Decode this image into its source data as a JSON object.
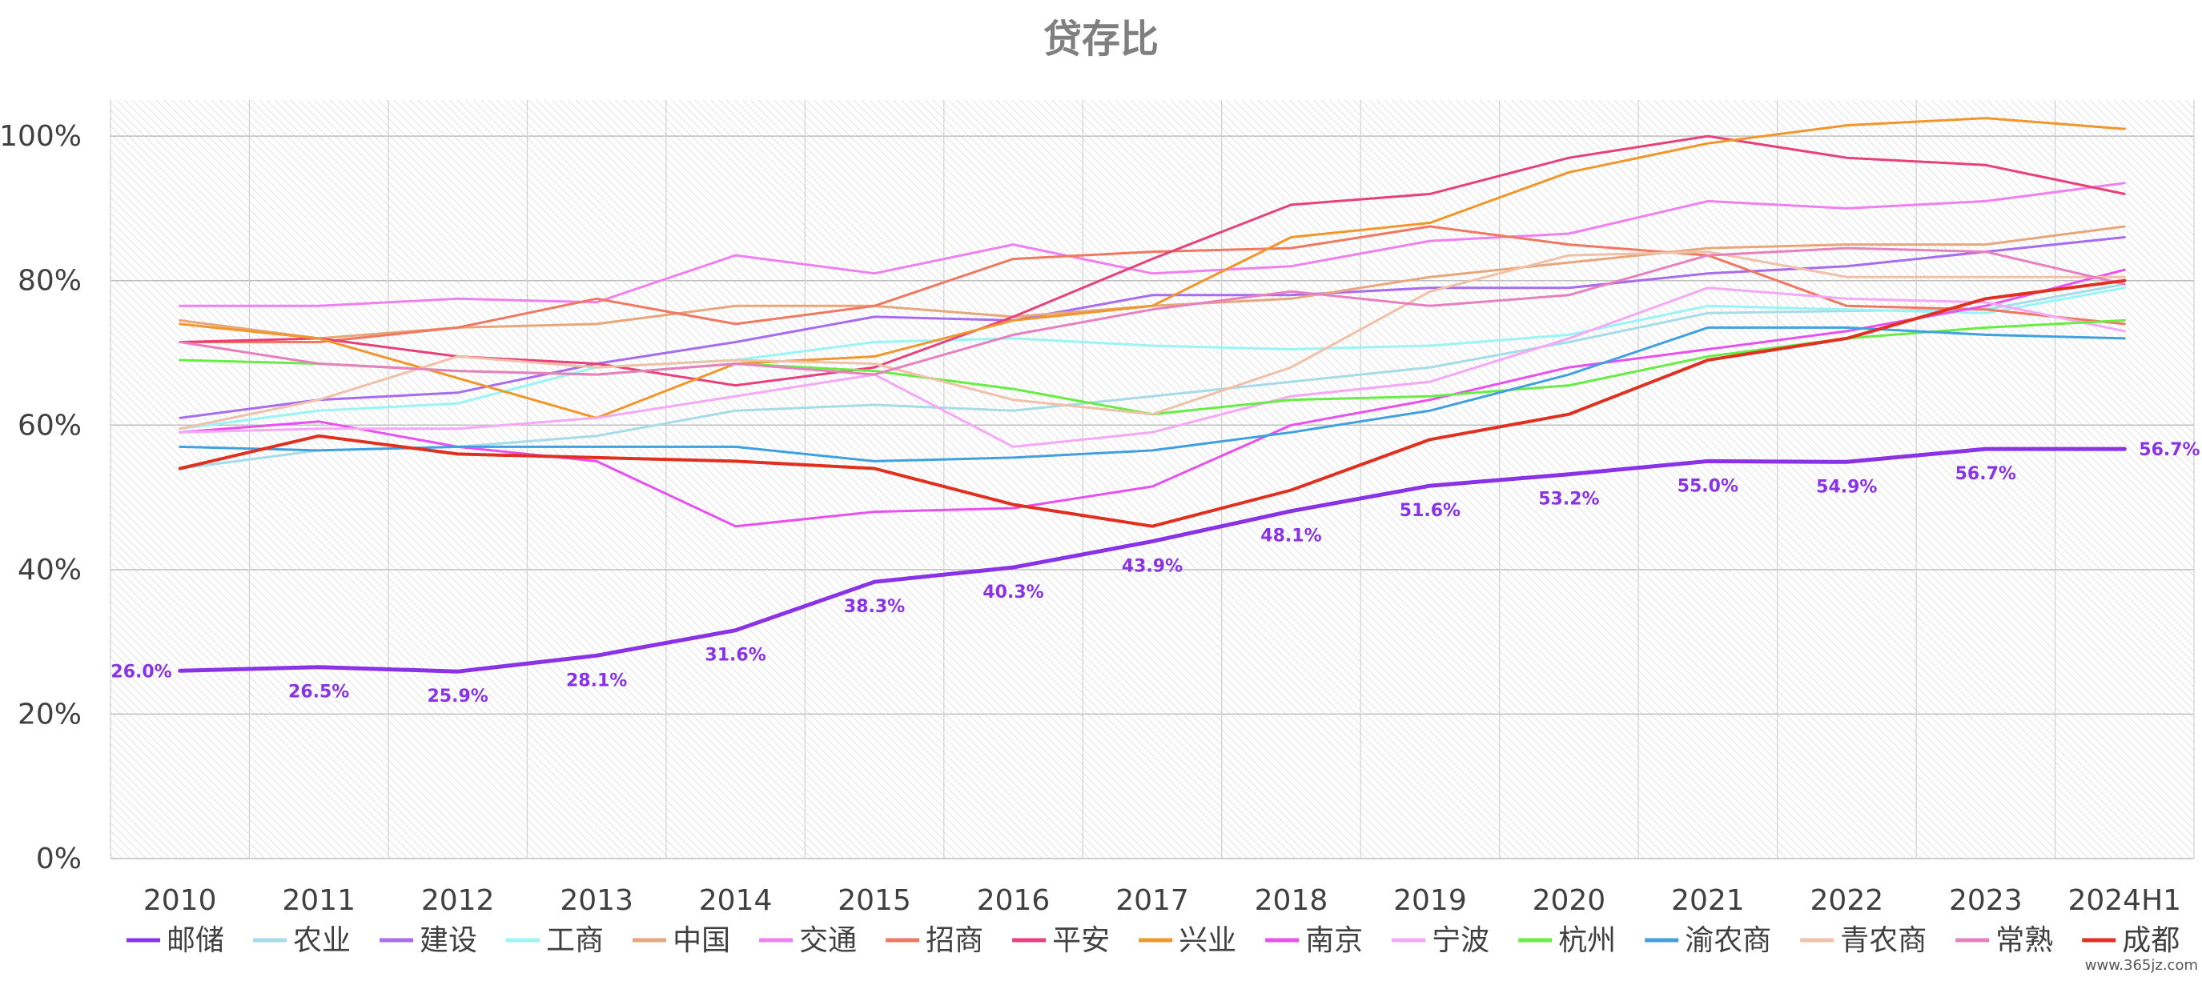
{
  "chart_data": {
    "type": "line",
    "title": "贷存比",
    "xlabel": "",
    "ylabel": "",
    "categories": [
      "2010",
      "2011",
      "2012",
      "2013",
      "2014",
      "2015",
      "2016",
      "2017",
      "2018",
      "2019",
      "2020",
      "2021",
      "2022",
      "2023",
      "2024H1"
    ],
    "ylim": [
      0,
      100
    ],
    "yticks": [
      "0%",
      "20%",
      "40%",
      "60%",
      "80%",
      "100%"
    ],
    "grid": true,
    "legend_position": "bottom",
    "series": [
      {
        "name": "邮储",
        "color": "#8a33e6",
        "width": 5,
        "labeled": true,
        "values": [
          26.0,
          26.5,
          25.9,
          28.1,
          31.6,
          38.3,
          40.3,
          43.9,
          48.1,
          51.6,
          53.2,
          55.0,
          54.9,
          56.7,
          56.7
        ],
        "labels": [
          "26.0%",
          "26.5%",
          "25.9%",
          "28.1%",
          "31.6%",
          "38.3%",
          "40.3%",
          "43.9%",
          "48.1%",
          "51.6%",
          "53.2%",
          "55.0%",
          "54.9%",
          "56.7%",
          "56.7%"
        ]
      },
      {
        "name": "农业",
        "color": "#a5dce8",
        "width": 3,
        "values": [
          54.0,
          56.5,
          57.0,
          58.5,
          62.0,
          62.8,
          62.0,
          64.0,
          66.0,
          68.0,
          71.5,
          75.5,
          75.8,
          76.0,
          79.5
        ]
      },
      {
        "name": "建设",
        "color": "#a86cf0",
        "width": 3,
        "values": [
          61.0,
          63.5,
          64.5,
          68.5,
          71.5,
          75.0,
          74.5,
          78.0,
          78.0,
          79.0,
          79.0,
          81.0,
          82.0,
          84.0,
          86.0
        ]
      },
      {
        "name": "工商",
        "color": "#99f5f5",
        "width": 3,
        "values": [
          59.5,
          62.0,
          63.0,
          68.0,
          69.0,
          71.5,
          72.0,
          71.0,
          70.5,
          71.0,
          72.5,
          76.5,
          76.0,
          75.5,
          79.0
        ]
      },
      {
        "name": "中国",
        "color": "#e8a77a",
        "width": 3,
        "values": [
          74.5,
          72.0,
          73.5,
          74.0,
          76.5,
          76.5,
          75.0,
          76.5,
          77.5,
          80.5,
          82.5,
          84.5,
          85.0,
          85.0,
          87.5
        ]
      },
      {
        "name": "交通",
        "color": "#f080f0",
        "width": 3,
        "values": [
          76.5,
          76.5,
          77.5,
          77.0,
          83.5,
          81.0,
          85.0,
          81.0,
          82.0,
          85.5,
          86.5,
          91.0,
          90.0,
          91.0,
          93.5
        ]
      },
      {
        "name": "招商",
        "color": "#f07860",
        "width": 3,
        "values": [
          71.5,
          71.5,
          73.5,
          77.5,
          74.0,
          76.5,
          83.0,
          84.0,
          84.5,
          87.5,
          85.0,
          83.5,
          76.5,
          76.0,
          74.0
        ]
      },
      {
        "name": "平安",
        "color": "#e8407a",
        "width": 3,
        "values": [
          71.5,
          72.0,
          69.5,
          68.5,
          65.5,
          68.0,
          75.0,
          83.0,
          90.5,
          92.0,
          97.0,
          100.0,
          97.0,
          96.0,
          92.0
        ]
      },
      {
        "name": "兴业",
        "color": "#f0962a",
        "width": 3,
        "values": [
          74.0,
          72.0,
          66.5,
          61.0,
          68.5,
          69.5,
          74.5,
          76.5,
          86.0,
          88.0,
          95.0,
          99.0,
          101.5,
          102.5,
          101.0
        ]
      },
      {
        "name": "南京",
        "color": "#e850f0",
        "width": 3,
        "values": [
          59.0,
          60.5,
          57.0,
          55.0,
          46.0,
          48.0,
          48.5,
          51.5,
          60.0,
          63.5,
          68.0,
          70.5,
          73.0,
          76.5,
          81.5
        ]
      },
      {
        "name": "宁波",
        "color": "#f5a8f5",
        "width": 3,
        "values": [
          59.0,
          59.5,
          59.5,
          61.0,
          64.0,
          67.0,
          57.0,
          59.0,
          64.0,
          66.0,
          72.0,
          79.0,
          77.5,
          77.0,
          73.0
        ]
      },
      {
        "name": "杭州",
        "color": "#66ee44",
        "width": 3,
        "values": [
          69.0,
          68.5,
          67.5,
          67.0,
          68.5,
          67.5,
          65.0,
          61.5,
          63.5,
          64.0,
          65.5,
          69.5,
          72.0,
          73.5,
          74.5
        ]
      },
      {
        "name": "渝农商",
        "color": "#40a0e0",
        "width": 3,
        "values": [
          57.0,
          56.5,
          57.0,
          57.0,
          57.0,
          55.0,
          55.5,
          56.5,
          59.0,
          62.0,
          67.0,
          73.5,
          73.5,
          72.5,
          72.0
        ]
      },
      {
        "name": "青农商",
        "color": "#f0c0a8",
        "width": 3,
        "values": [
          59.5,
          63.5,
          69.5,
          68.0,
          69.0,
          68.5,
          63.5,
          61.5,
          68.0,
          78.5,
          83.5,
          84.0,
          80.5,
          80.5,
          80.5
        ]
      },
      {
        "name": "常熟",
        "color": "#e880c0",
        "width": 3,
        "values": [
          71.5,
          68.5,
          67.5,
          67.0,
          68.5,
          67.0,
          72.5,
          76.0,
          78.5,
          76.5,
          78.0,
          83.5,
          84.5,
          84.0,
          79.5
        ]
      },
      {
        "name": "成都",
        "color": "#e03020",
        "width": 4,
        "values": [
          54.0,
          58.5,
          56.0,
          55.5,
          55.0,
          54.0,
          49.0,
          46.0,
          51.0,
          58.0,
          61.5,
          69.0,
          72.0,
          77.5,
          80.0
        ]
      }
    ]
  },
  "watermark": "www.365jz.com"
}
